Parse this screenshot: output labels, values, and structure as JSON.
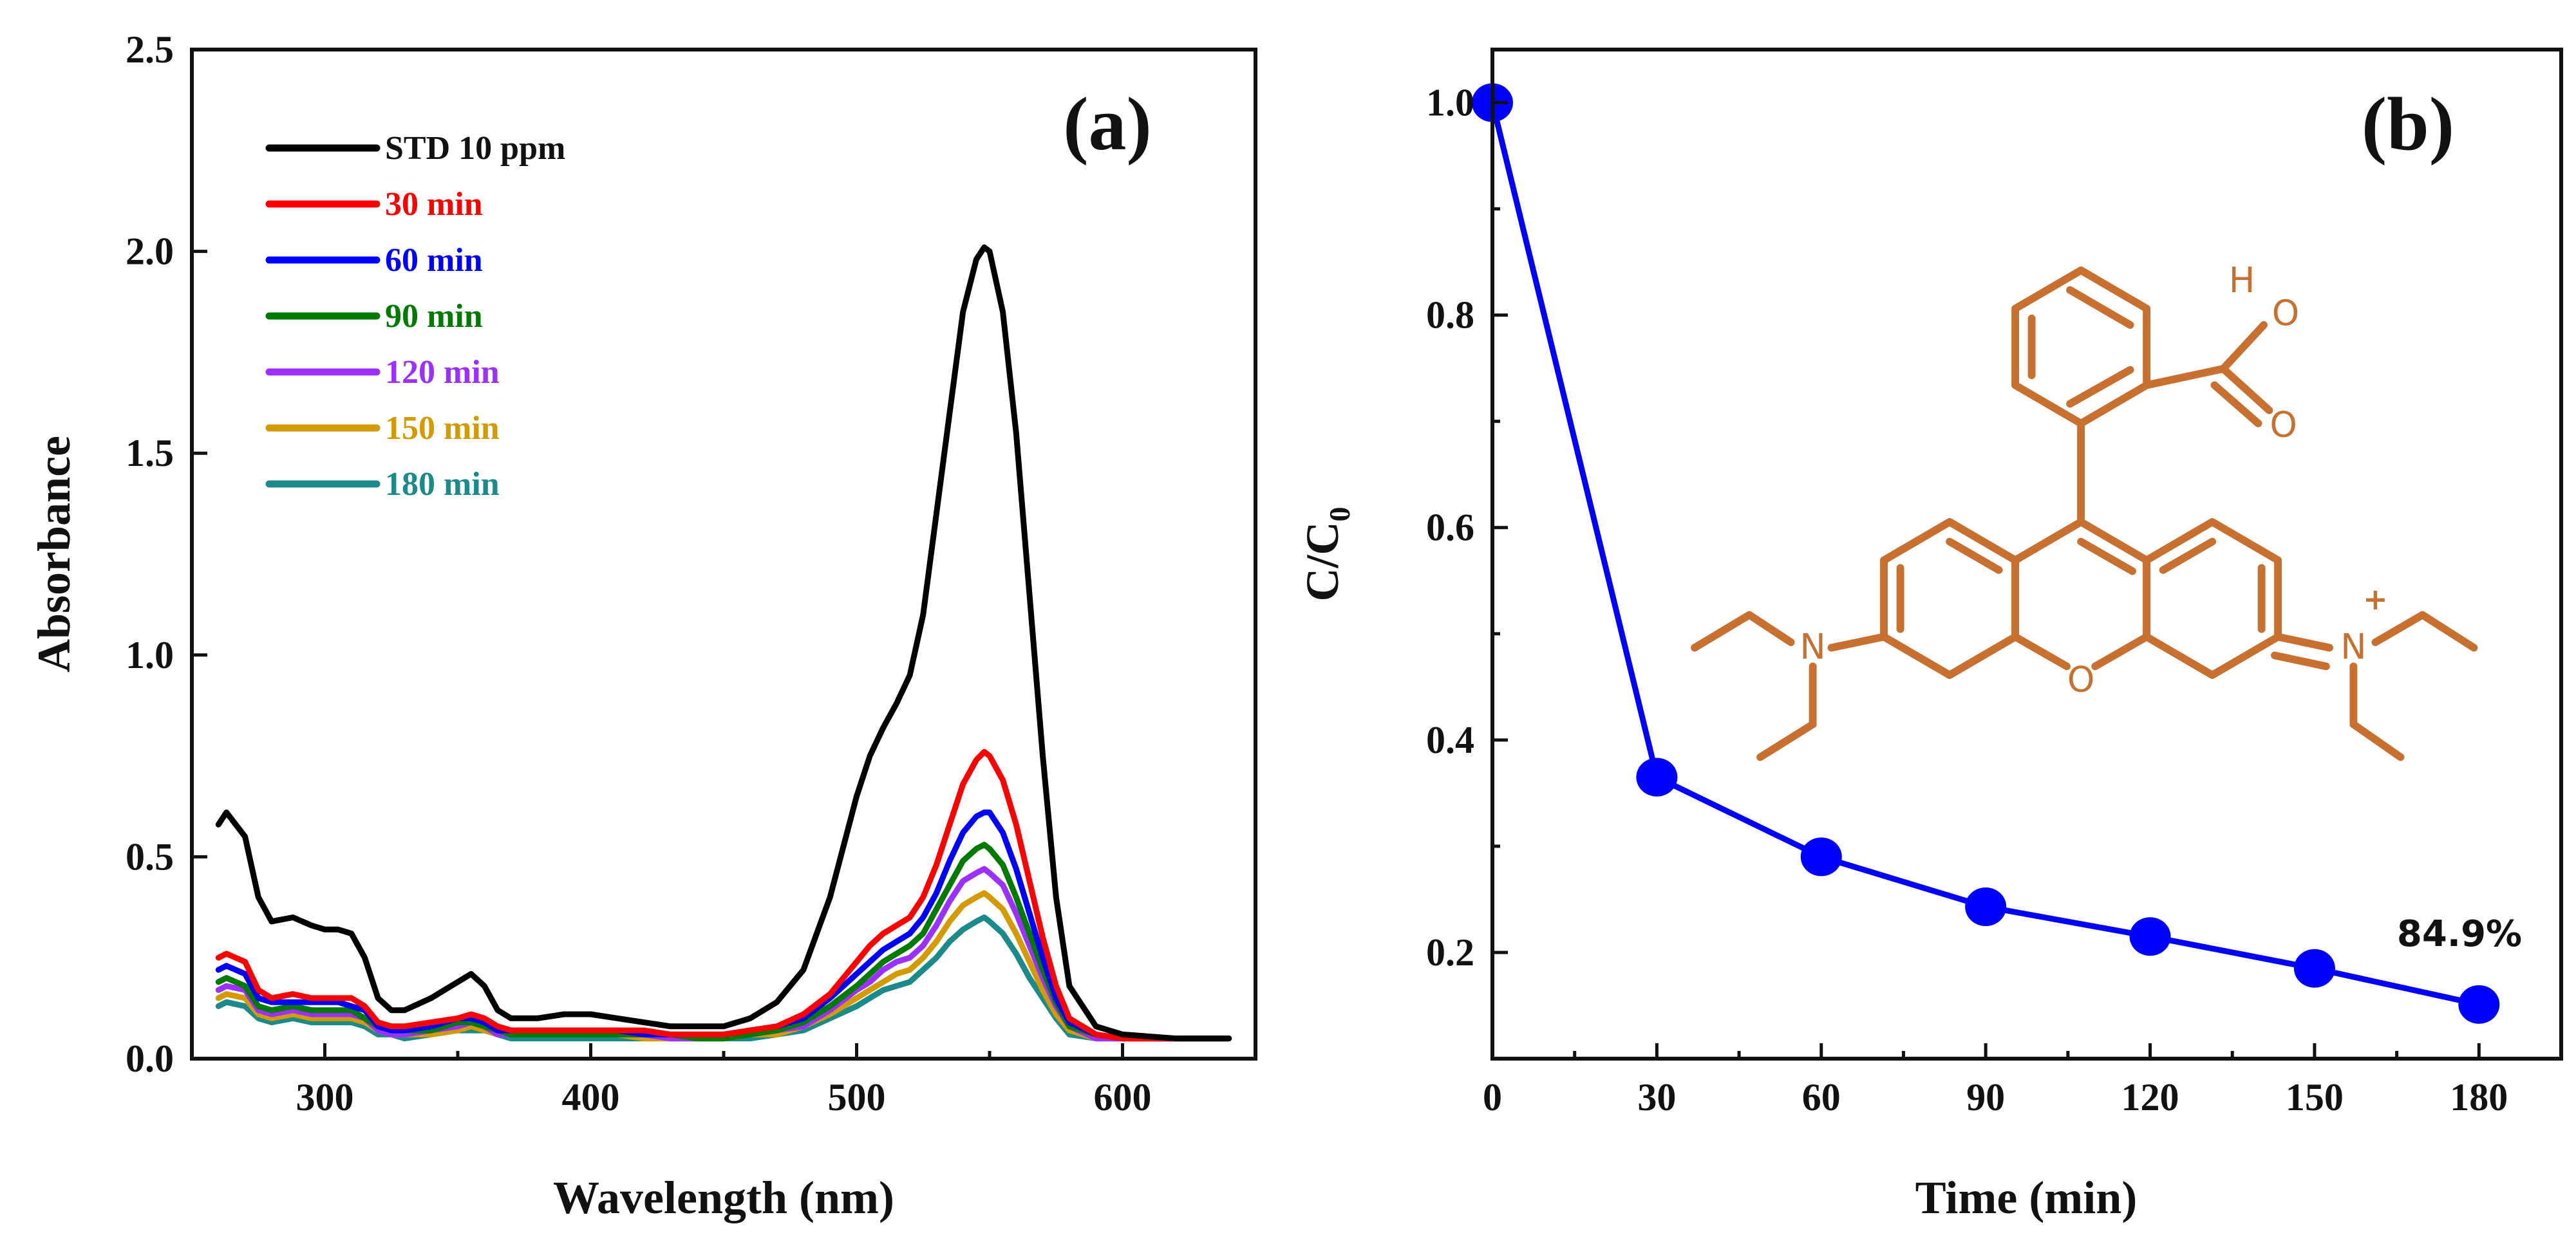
{
  "chart_data": [
    {
      "type": "line",
      "panel": "(a)",
      "xlabel": "Wavelength (nm)",
      "ylabel": "Absorbance",
      "xlim": [
        250,
        650
      ],
      "ylim": [
        0.0,
        2.5
      ],
      "xticks": [
        300,
        400,
        500,
        600
      ],
      "yticks": [
        0.0,
        0.5,
        1.0,
        1.5,
        2.0,
        2.5
      ],
      "ytick_labels": [
        "0.0",
        "0.5",
        "1.0",
        "1.5",
        "2.0",
        "2.5"
      ],
      "legend_position": "top-left",
      "x": [
        260,
        263,
        270,
        275,
        280,
        288,
        295,
        300,
        305,
        310,
        315,
        320,
        325,
        330,
        340,
        350,
        355,
        360,
        365,
        370,
        380,
        390,
        400,
        410,
        420,
        430,
        440,
        450,
        460,
        470,
        480,
        490,
        500,
        505,
        510,
        515,
        520,
        525,
        530,
        535,
        540,
        545,
        548,
        550,
        555,
        560,
        565,
        570,
        575,
        580,
        590,
        600,
        620,
        640
      ],
      "series": [
        {
          "name": "STD 10 ppm",
          "color": "#000000",
          "y": [
            0.58,
            0.61,
            0.55,
            0.4,
            0.34,
            0.35,
            0.33,
            0.32,
            0.32,
            0.31,
            0.25,
            0.15,
            0.12,
            0.12,
            0.15,
            0.19,
            0.21,
            0.18,
            0.12,
            0.1,
            0.1,
            0.11,
            0.11,
            0.1,
            0.09,
            0.08,
            0.08,
            0.08,
            0.1,
            0.14,
            0.22,
            0.4,
            0.65,
            0.75,
            0.82,
            0.88,
            0.95,
            1.1,
            1.35,
            1.6,
            1.85,
            1.98,
            2.01,
            2.0,
            1.85,
            1.55,
            1.15,
            0.75,
            0.4,
            0.18,
            0.08,
            0.06,
            0.05,
            0.05
          ]
        },
        {
          "name": "30 min",
          "color": "#ff0000",
          "y": [
            0.25,
            0.26,
            0.24,
            0.17,
            0.15,
            0.16,
            0.15,
            0.15,
            0.15,
            0.15,
            0.13,
            0.09,
            0.08,
            0.08,
            0.09,
            0.1,
            0.11,
            0.1,
            0.08,
            0.07,
            0.07,
            0.07,
            0.07,
            0.07,
            0.07,
            0.06,
            0.06,
            0.06,
            0.07,
            0.08,
            0.11,
            0.16,
            0.24,
            0.28,
            0.31,
            0.33,
            0.35,
            0.4,
            0.48,
            0.58,
            0.68,
            0.74,
            0.76,
            0.75,
            0.69,
            0.58,
            0.44,
            0.3,
            0.18,
            0.1,
            0.06,
            0.05,
            0.05,
            0.05
          ]
        },
        {
          "name": "60 min",
          "color": "#0000ff",
          "y": [
            0.22,
            0.23,
            0.21,
            0.15,
            0.14,
            0.14,
            0.14,
            0.14,
            0.14,
            0.13,
            0.12,
            0.08,
            0.07,
            0.07,
            0.08,
            0.1,
            0.1,
            0.09,
            0.07,
            0.07,
            0.07,
            0.07,
            0.07,
            0.07,
            0.06,
            0.06,
            0.06,
            0.06,
            0.07,
            0.08,
            0.1,
            0.15,
            0.21,
            0.24,
            0.27,
            0.29,
            0.31,
            0.35,
            0.41,
            0.49,
            0.56,
            0.6,
            0.61,
            0.61,
            0.56,
            0.47,
            0.36,
            0.25,
            0.15,
            0.09,
            0.06,
            0.05,
            0.05,
            0.05
          ]
        },
        {
          "name": "90 min",
          "color": "#007a00",
          "y": [
            0.19,
            0.2,
            0.18,
            0.13,
            0.12,
            0.13,
            0.12,
            0.12,
            0.12,
            0.12,
            0.1,
            0.08,
            0.07,
            0.07,
            0.07,
            0.09,
            0.09,
            0.08,
            0.07,
            0.06,
            0.06,
            0.06,
            0.06,
            0.06,
            0.06,
            0.06,
            0.05,
            0.05,
            0.06,
            0.07,
            0.09,
            0.13,
            0.18,
            0.21,
            0.24,
            0.26,
            0.28,
            0.31,
            0.37,
            0.43,
            0.49,
            0.52,
            0.53,
            0.52,
            0.48,
            0.4,
            0.31,
            0.22,
            0.14,
            0.08,
            0.06,
            0.05,
            0.05,
            0.05
          ]
        },
        {
          "name": "120 min",
          "color": "#9b30ff",
          "y": [
            0.17,
            0.18,
            0.17,
            0.12,
            0.11,
            0.12,
            0.11,
            0.11,
            0.11,
            0.11,
            0.1,
            0.07,
            0.06,
            0.06,
            0.07,
            0.08,
            0.09,
            0.08,
            0.06,
            0.06,
            0.06,
            0.06,
            0.06,
            0.06,
            0.06,
            0.05,
            0.05,
            0.05,
            0.06,
            0.07,
            0.08,
            0.12,
            0.17,
            0.19,
            0.22,
            0.24,
            0.25,
            0.28,
            0.33,
            0.39,
            0.44,
            0.46,
            0.47,
            0.46,
            0.43,
            0.36,
            0.28,
            0.2,
            0.13,
            0.08,
            0.05,
            0.05,
            0.05,
            0.05
          ]
        },
        {
          "name": "150 min",
          "color": "#d39b00",
          "y": [
            0.15,
            0.16,
            0.15,
            0.11,
            0.1,
            0.11,
            0.1,
            0.1,
            0.1,
            0.1,
            0.09,
            0.07,
            0.06,
            0.06,
            0.06,
            0.07,
            0.08,
            0.07,
            0.06,
            0.06,
            0.06,
            0.06,
            0.06,
            0.06,
            0.05,
            0.05,
            0.05,
            0.05,
            0.06,
            0.06,
            0.08,
            0.11,
            0.15,
            0.17,
            0.19,
            0.21,
            0.22,
            0.25,
            0.29,
            0.34,
            0.38,
            0.4,
            0.41,
            0.4,
            0.37,
            0.31,
            0.24,
            0.17,
            0.11,
            0.07,
            0.05,
            0.05,
            0.05,
            0.05
          ]
        },
        {
          "name": "180 min",
          "color": "#1a8a8a",
          "y": [
            0.13,
            0.14,
            0.13,
            0.1,
            0.09,
            0.1,
            0.09,
            0.09,
            0.09,
            0.09,
            0.08,
            0.06,
            0.06,
            0.05,
            0.06,
            0.07,
            0.07,
            0.07,
            0.06,
            0.05,
            0.05,
            0.05,
            0.05,
            0.05,
            0.05,
            0.05,
            0.05,
            0.05,
            0.05,
            0.06,
            0.07,
            0.1,
            0.13,
            0.15,
            0.17,
            0.18,
            0.19,
            0.22,
            0.25,
            0.29,
            0.32,
            0.34,
            0.35,
            0.34,
            0.31,
            0.26,
            0.2,
            0.15,
            0.1,
            0.06,
            0.05,
            0.05,
            0.05,
            0.05
          ]
        }
      ]
    },
    {
      "type": "line",
      "panel": "(b)",
      "xlabel": "Time (min)",
      "ylabel_main": "C/C",
      "ylabel_sub": "0",
      "xlim": [
        0,
        195
      ],
      "ylim": [
        0.1,
        1.05
      ],
      "xticks": [
        0,
        30,
        60,
        90,
        120,
        150,
        180
      ],
      "yticks": [
        0.2,
        0.4,
        0.6,
        0.8,
        1.0
      ],
      "ytick_labels": [
        "0.2",
        "0.4",
        "0.6",
        "0.8",
        "1.0"
      ],
      "color": "#0000ff",
      "x": [
        0,
        30,
        60,
        90,
        120,
        150,
        180
      ],
      "y": [
        1.0,
        0.365,
        0.29,
        0.243,
        0.215,
        0.185,
        0.151
      ],
      "annotation": "84.9%",
      "structure": {
        "name": "rhodamine B",
        "color": "#c87030",
        "atom_labels": {
          "hydrogen": "H",
          "oxygen_hydroxyl": "O",
          "oxygen_carbonyl": "O",
          "oxygen_ring": "O",
          "nitrogen_left": "N",
          "nitrogen_right": "N",
          "charge": "+"
        }
      }
    }
  ]
}
